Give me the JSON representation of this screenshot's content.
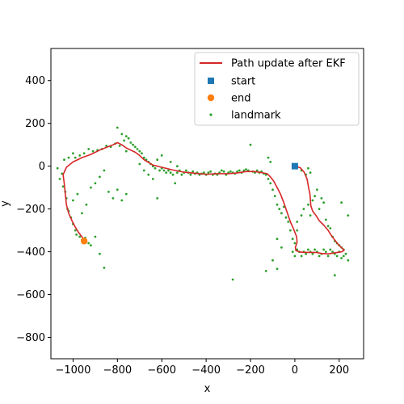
{
  "chart_data": {
    "type": "scatter",
    "title": "",
    "xlabel": "x",
    "ylabel": "y",
    "xlim": [
      -1100,
      310
    ],
    "ylim": [
      -900,
      550
    ],
    "xticks": [
      -1000,
      -800,
      -600,
      -400,
      -200,
      0,
      200
    ],
    "yticks": [
      -800,
      -600,
      -400,
      -200,
      0,
      200,
      400
    ],
    "xtick_labels": [
      "−1000",
      "−800",
      "−600",
      "−400",
      "−200",
      "0",
      "200"
    ],
    "ytick_labels": [
      "−800",
      "−600",
      "−400",
      "−200",
      "0",
      "200",
      "400"
    ],
    "grid": false,
    "legend_position": "top-right",
    "colors": {
      "path": "#d62728",
      "start": "#1f77b4",
      "end": "#ff7f0e",
      "landmark": "#2ca02c"
    },
    "series": [
      {
        "name": "Path update after EKF",
        "kind": "line",
        "points": [
          [
            0,
            0
          ],
          [
            12,
            -3
          ],
          [
            25,
            -8
          ],
          [
            42,
            -28
          ],
          [
            55,
            -60
          ],
          [
            62,
            -100
          ],
          [
            68,
            -130
          ],
          [
            70,
            -155
          ],
          [
            72,
            -185
          ],
          [
            80,
            -210
          ],
          [
            95,
            -230
          ],
          [
            110,
            -255
          ],
          [
            130,
            -275
          ],
          [
            150,
            -300
          ],
          [
            165,
            -325
          ],
          [
            180,
            -345
          ],
          [
            195,
            -365
          ],
          [
            210,
            -380
          ],
          [
            222,
            -393
          ],
          [
            212,
            -400
          ],
          [
            180,
            -405
          ],
          [
            150,
            -410
          ],
          [
            120,
            -408
          ],
          [
            95,
            -403
          ],
          [
            60,
            -403
          ],
          [
            25,
            -402
          ],
          [
            5,
            -395
          ],
          [
            2,
            -380
          ],
          [
            10,
            -355
          ],
          [
            8,
            -330
          ],
          [
            -5,
            -295
          ],
          [
            -20,
            -260
          ],
          [
            -35,
            -215
          ],
          [
            -50,
            -170
          ],
          [
            -65,
            -130
          ],
          [
            -80,
            -100
          ],
          [
            -95,
            -70
          ],
          [
            -110,
            -50
          ],
          [
            -125,
            -35
          ],
          [
            -150,
            -30
          ],
          [
            -180,
            -25
          ],
          [
            -220,
            -25
          ],
          [
            -260,
            -32
          ],
          [
            -300,
            -35
          ],
          [
            -350,
            -35
          ],
          [
            -400,
            -38
          ],
          [
            -450,
            -33
          ],
          [
            -500,
            -28
          ],
          [
            -550,
            -18
          ],
          [
            -600,
            -5
          ],
          [
            -640,
            5
          ],
          [
            -680,
            30
          ],
          [
            -700,
            50
          ],
          [
            -720,
            65
          ],
          [
            -740,
            75
          ],
          [
            -760,
            85
          ],
          [
            -780,
            100
          ],
          [
            -800,
            110
          ],
          [
            -820,
            100
          ],
          [
            -850,
            88
          ],
          [
            -880,
            75
          ],
          [
            -920,
            55
          ],
          [
            -960,
            40
          ],
          [
            -1000,
            20
          ],
          [
            -1030,
            -5
          ],
          [
            -1045,
            -40
          ],
          [
            -1040,
            -80
          ],
          [
            -1035,
            -130
          ],
          [
            -1030,
            -180
          ],
          [
            -1020,
            -220
          ],
          [
            -1005,
            -255
          ],
          [
            -990,
            -285
          ],
          [
            -975,
            -310
          ],
          [
            -960,
            -330
          ],
          [
            -950,
            -350
          ]
        ]
      },
      {
        "name": "start",
        "kind": "square",
        "points": [
          [
            0,
            0
          ]
        ]
      },
      {
        "name": "end",
        "kind": "circle",
        "points": [
          [
            -950,
            -350
          ]
        ]
      },
      {
        "name": "landmark",
        "kind": "dots",
        "points": [
          [
            -1070,
            -10
          ],
          [
            -1060,
            -60
          ],
          [
            -1050,
            -35
          ],
          [
            -1045,
            -95
          ],
          [
            -1035,
            -120
          ],
          [
            -1030,
            -150
          ],
          [
            -1025,
            -200
          ],
          [
            -1020,
            -210
          ],
          [
            -1010,
            -240
          ],
          [
            -1000,
            -270
          ],
          [
            -990,
            -300
          ],
          [
            -985,
            -320
          ],
          [
            -970,
            -330
          ],
          [
            -960,
            -345
          ],
          [
            -945,
            -335
          ],
          [
            -930,
            -360
          ],
          [
            -920,
            -370
          ],
          [
            -900,
            -330
          ],
          [
            -880,
            -410
          ],
          [
            -860,
            -475
          ],
          [
            -1000,
            -160
          ],
          [
            -980,
            -130
          ],
          [
            -960,
            -220
          ],
          [
            -940,
            -180
          ],
          [
            -920,
            -100
          ],
          [
            -900,
            -80
          ],
          [
            -880,
            -50
          ],
          [
            -860,
            -20
          ],
          [
            -840,
            -120
          ],
          [
            -820,
            -150
          ],
          [
            -800,
            -110
          ],
          [
            -780,
            -160
          ],
          [
            -760,
            -130
          ],
          [
            -1040,
            30
          ],
          [
            -1020,
            40
          ],
          [
            -1000,
            60
          ],
          [
            -990,
            40
          ],
          [
            -970,
            50
          ],
          [
            -950,
            60
          ],
          [
            -930,
            80
          ],
          [
            -910,
            70
          ],
          [
            -890,
            75
          ],
          [
            -870,
            80
          ],
          [
            -850,
            95
          ],
          [
            -830,
            90
          ],
          [
            -810,
            105
          ],
          [
            -800,
            180
          ],
          [
            -790,
            95
          ],
          [
            -780,
            150
          ],
          [
            -770,
            120
          ],
          [
            -760,
            140
          ],
          [
            -750,
            130
          ],
          [
            -740,
            110
          ],
          [
            -730,
            100
          ],
          [
            -720,
            90
          ],
          [
            -710,
            80
          ],
          [
            -700,
            70
          ],
          [
            -690,
            60
          ],
          [
            -680,
            40
          ],
          [
            -670,
            30
          ],
          [
            -660,
            20
          ],
          [
            -650,
            10
          ],
          [
            -640,
            0
          ],
          [
            -630,
            -10
          ],
          [
            -620,
            -150
          ],
          [
            -610,
            -20
          ],
          [
            -600,
            -10
          ],
          [
            -590,
            -20
          ],
          [
            -580,
            -30
          ],
          [
            -570,
            -20
          ],
          [
            -560,
            -30
          ],
          [
            -550,
            -40
          ],
          [
            -540,
            -80
          ],
          [
            -530,
            -30
          ],
          [
            -520,
            -20
          ],
          [
            -510,
            -40
          ],
          [
            -500,
            -30
          ],
          [
            -490,
            -20
          ],
          [
            -480,
            -30
          ],
          [
            -470,
            -40
          ],
          [
            -460,
            -25
          ],
          [
            -450,
            -35
          ],
          [
            -440,
            -30
          ],
          [
            -430,
            -40
          ],
          [
            -420,
            -35
          ],
          [
            -410,
            -30
          ],
          [
            -400,
            -40
          ],
          [
            -390,
            -30
          ],
          [
            -380,
            -25
          ],
          [
            -370,
            -40
          ],
          [
            -360,
            -35
          ],
          [
            -350,
            -40
          ],
          [
            -340,
            -30
          ],
          [
            -330,
            -20
          ],
          [
            -320,
            -25
          ],
          [
            -310,
            -40
          ],
          [
            -300,
            -30
          ],
          [
            -290,
            -25
          ],
          [
            -280,
            -30
          ],
          [
            -270,
            -35
          ],
          [
            -260,
            -25
          ],
          [
            -250,
            -20
          ],
          [
            -240,
            -30
          ],
          [
            -230,
            -20
          ],
          [
            -220,
            -15
          ],
          [
            -210,
            -20
          ],
          [
            -200,
            100
          ],
          [
            -190,
            -25
          ],
          [
            -180,
            -30
          ],
          [
            -170,
            -20
          ],
          [
            -160,
            -30
          ],
          [
            -150,
            -25
          ],
          [
            -140,
            -35
          ],
          [
            -130,
            -40
          ],
          [
            -120,
            -60
          ],
          [
            -110,
            -80
          ],
          [
            -100,
            -110
          ],
          [
            -90,
            -140
          ],
          [
            -80,
            -180
          ],
          [
            -70,
            -200
          ],
          [
            -60,
            -220
          ],
          [
            -50,
            -190
          ],
          [
            -40,
            -240
          ],
          [
            -30,
            -260
          ],
          [
            -20,
            -300
          ],
          [
            -10,
            -340
          ],
          [
            0,
            -360
          ],
          [
            -80,
            -340
          ],
          [
            -60,
            -380
          ],
          [
            -100,
            -440
          ],
          [
            -80,
            -480
          ],
          [
            -130,
            -490
          ],
          [
            -280,
            -530
          ],
          [
            -10,
            -400
          ],
          [
            0,
            -420
          ],
          [
            10,
            -300
          ],
          [
            10,
            -260
          ],
          [
            30,
            -230
          ],
          [
            40,
            -200
          ],
          [
            60,
            -180
          ],
          [
            70,
            -230
          ],
          [
            80,
            -160
          ],
          [
            90,
            -140
          ],
          [
            100,
            -110
          ],
          [
            110,
            -200
          ],
          [
            120,
            -150
          ],
          [
            130,
            -170
          ],
          [
            140,
            -250
          ],
          [
            150,
            -280
          ],
          [
            160,
            -290
          ],
          [
            170,
            -330
          ],
          [
            180,
            -350
          ],
          [
            190,
            -360
          ],
          [
            200,
            -370
          ],
          [
            210,
            -380
          ],
          [
            220,
            -390
          ],
          [
            230,
            -410
          ],
          [
            240,
            -440
          ],
          [
            220,
            -420
          ],
          [
            210,
            -430
          ],
          [
            200,
            -400
          ],
          [
            190,
            -420
          ],
          [
            180,
            -410
          ],
          [
            170,
            -400
          ],
          [
            160,
            -390
          ],
          [
            150,
            -420
          ],
          [
            140,
            -400
          ],
          [
            130,
            -390
          ],
          [
            120,
            -410
          ],
          [
            110,
            -420
          ],
          [
            100,
            -400
          ],
          [
            90,
            -390
          ],
          [
            80,
            -410
          ],
          [
            70,
            -400
          ],
          [
            60,
            -390
          ],
          [
            50,
            -410
          ],
          [
            40,
            -400
          ],
          [
            30,
            -420
          ],
          [
            20,
            -400
          ],
          [
            10,
            -390
          ],
          [
            180,
            -510
          ],
          [
            210,
            -170
          ],
          [
            240,
            -230
          ],
          [
            30,
            -20
          ],
          [
            50,
            -40
          ],
          [
            70,
            -30
          ],
          [
            60,
            -10
          ],
          [
            -120,
            40
          ],
          [
            -110,
            20
          ],
          [
            -760,
            70
          ],
          [
            -700,
            10
          ],
          [
            -680,
            -20
          ],
          [
            -660,
            -40
          ],
          [
            -640,
            -60
          ],
          [
            -620,
            30
          ],
          [
            -560,
            20
          ],
          [
            -530,
            0
          ],
          [
            -600,
            50
          ]
        ]
      }
    ]
  }
}
